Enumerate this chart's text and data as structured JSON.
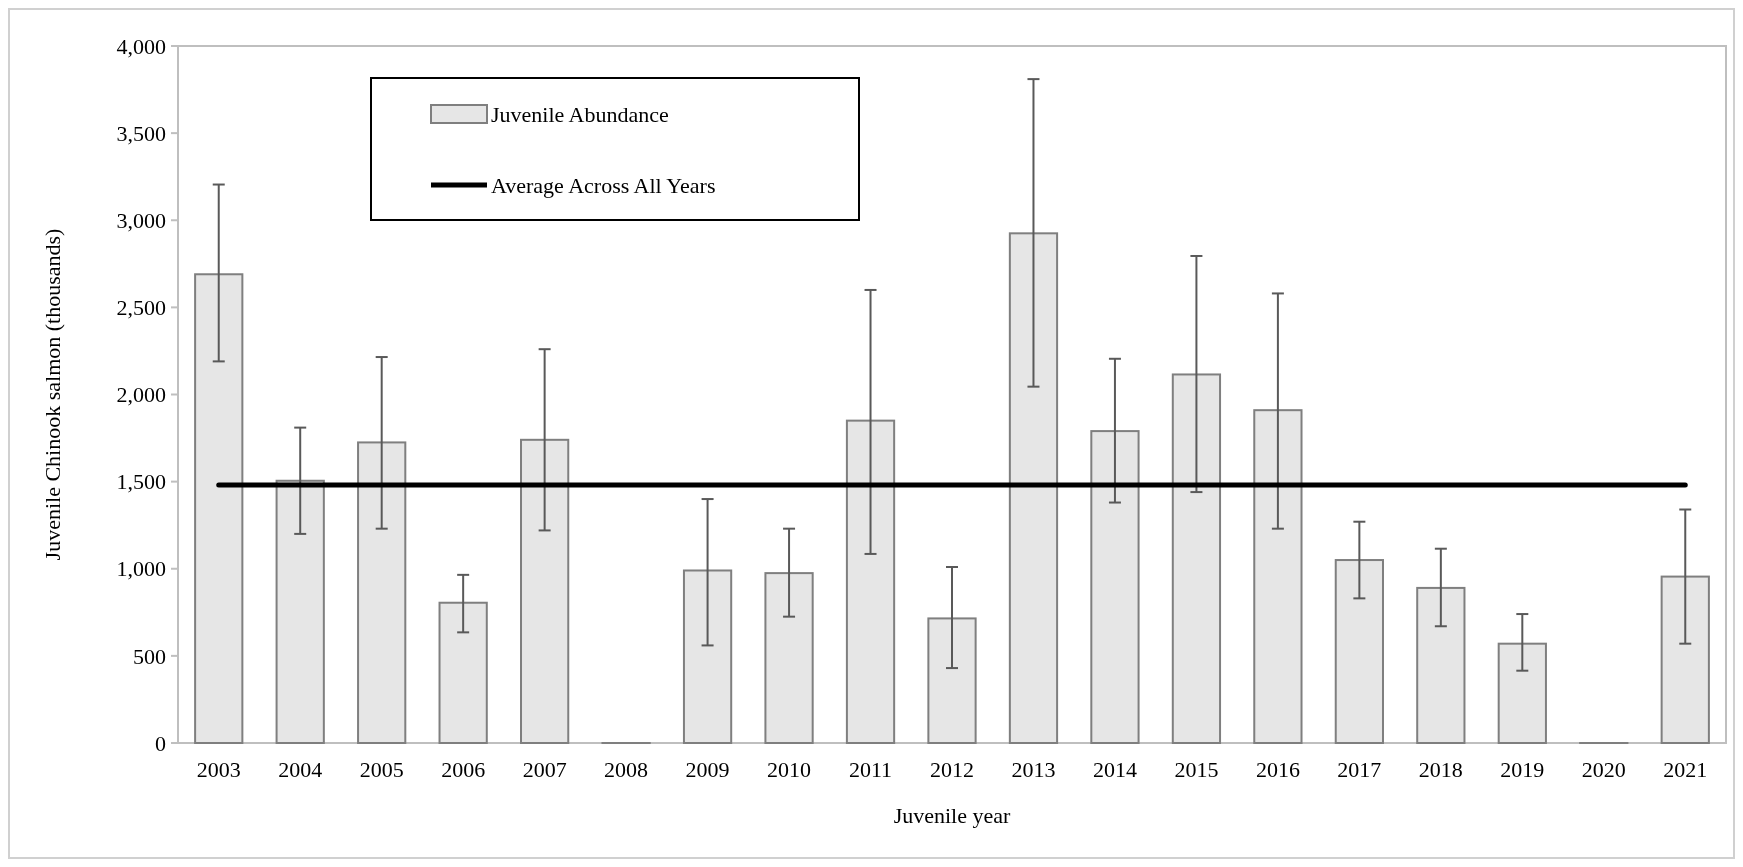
{
  "chart_data": {
    "type": "bar",
    "xlabel": "Juvenile year",
    "ylabel": "Juvenile Chinook salmon (thousands)",
    "categories": [
      "2003",
      "2004",
      "2005",
      "2006",
      "2007",
      "2008",
      "2009",
      "2010",
      "2011",
      "2012",
      "2013",
      "2014",
      "2015",
      "2016",
      "2017",
      "2018",
      "2019",
      "2020",
      "2021"
    ],
    "series": [
      {
        "name": "Juvenile Abundance",
        "color": "#e6e6e6",
        "values": [
          2690,
          1505,
          1725,
          805,
          1740,
          0,
          990,
          975,
          1850,
          715,
          2925,
          1790,
          2115,
          1910,
          1050,
          890,
          570,
          0,
          955
        ],
        "errors": [
          [
            2190,
            3205
          ],
          [
            1200,
            1810
          ],
          [
            1230,
            2215
          ],
          [
            635,
            965
          ],
          [
            1220,
            2260
          ],
          null,
          [
            560,
            1400
          ],
          [
            725,
            1230
          ],
          [
            1085,
            2600
          ],
          [
            430,
            1010
          ],
          [
            2045,
            3810
          ],
          [
            1380,
            2205
          ],
          [
            1440,
            2795
          ],
          [
            1230,
            2580
          ],
          [
            830,
            1270
          ],
          [
            670,
            1115
          ],
          [
            415,
            740
          ],
          null,
          [
            570,
            1340
          ]
        ]
      },
      {
        "name": "Average Across All Years",
        "type": "line",
        "color": "#000000",
        "values": [
          1480,
          1480,
          1480,
          1480,
          1480,
          1480,
          1480,
          1480,
          1480,
          1480,
          1480,
          1480,
          1480,
          1480,
          1480,
          1480,
          1480,
          1480,
          1480
        ]
      }
    ],
    "ylim": [
      0,
      4000
    ],
    "yticks": [
      {
        "value": 0,
        "label": "0"
      },
      {
        "value": 500,
        "label": "500"
      },
      {
        "value": 1000,
        "label": "1,000"
      },
      {
        "value": 1500,
        "label": "1,500"
      },
      {
        "value": 2000,
        "label": "2,000"
      },
      {
        "value": 2500,
        "label": "2,500"
      },
      {
        "value": 3000,
        "label": "3,000"
      },
      {
        "value": 3500,
        "label": "3,500"
      },
      {
        "value": 4000,
        "label": "4,000"
      }
    ],
    "legend": "top left"
  }
}
